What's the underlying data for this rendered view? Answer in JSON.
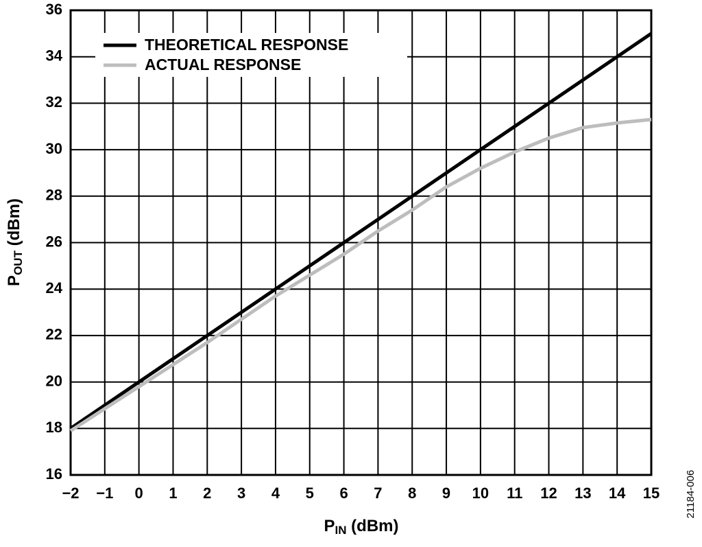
{
  "chart_data": {
    "type": "line",
    "x_label": {
      "main": "P",
      "sub": "IN",
      "rest": " (dBm)"
    },
    "y_label": {
      "main": "P",
      "sub": "OUT",
      "rest": " (dBm)"
    },
    "note": "21184-006",
    "x": [
      -2,
      -1,
      0,
      1,
      2,
      3,
      4,
      5,
      6,
      7,
      8,
      9,
      10,
      11,
      12,
      13,
      14,
      15
    ],
    "series": [
      {
        "name": "THEORETICAL RESPONSE",
        "color": "#000000",
        "values": [
          18,
          19,
          20,
          21,
          22,
          23,
          24,
          25,
          26,
          27,
          28,
          29,
          30,
          31,
          32,
          33,
          34,
          35
        ]
      },
      {
        "name": "ACTUAL RESPONSE",
        "color": "#bdbdbd",
        "values": [
          17.9,
          18.85,
          19.8,
          20.75,
          21.7,
          22.7,
          23.7,
          24.6,
          25.5,
          26.5,
          27.4,
          28.4,
          29.2,
          29.9,
          30.5,
          30.95,
          31.15,
          31.3
        ]
      }
    ],
    "xlim": [
      -2,
      15
    ],
    "ylim": [
      16,
      36
    ],
    "xticks": [
      {
        "value": -2,
        "label": "−2"
      },
      {
        "value": -1,
        "label": "−1"
      },
      0,
      1,
      2,
      3,
      4,
      5,
      6,
      7,
      8,
      9,
      10,
      11,
      12,
      13,
      14,
      15
    ],
    "yticks": [
      16,
      18,
      20,
      22,
      24,
      26,
      28,
      30,
      32,
      34,
      36
    ],
    "grid": true,
    "legend": "upper left"
  }
}
